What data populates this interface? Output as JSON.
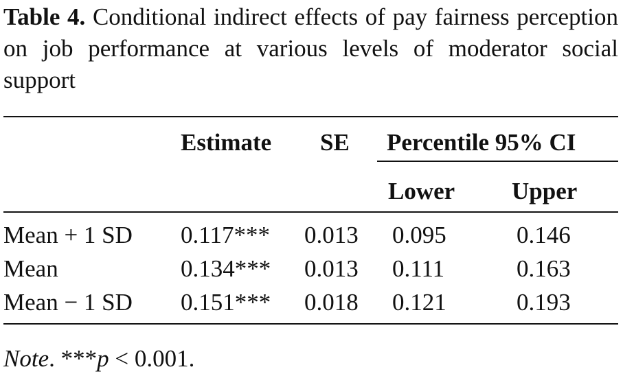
{
  "caption": {
    "label": "Table 4.",
    "text": "Conditional indirect effects of pay fairness perception on job performance at various levels of moderator social support"
  },
  "table": {
    "headers": {
      "estimate": "Estimate",
      "se": "SE",
      "ci_group": "Percentile 95% CI",
      "lower": "Lower",
      "upper": "Upper"
    },
    "rows": [
      {
        "label": "Mean + 1 SD",
        "estimate": "0.117***",
        "se": "0.013",
        "lower": "0.095",
        "upper": "0.146"
      },
      {
        "label": "Mean",
        "estimate": "0.134***",
        "se": "0.013",
        "lower": "0.111",
        "upper": "0.163"
      },
      {
        "label": "Mean − 1 SD",
        "estimate": "0.151***",
        "se": "0.018",
        "lower": "0.121",
        "upper": "0.193"
      }
    ]
  },
  "note": {
    "label": "Note",
    "stars": "***",
    "p": "p",
    "rest": " < 0.001."
  }
}
